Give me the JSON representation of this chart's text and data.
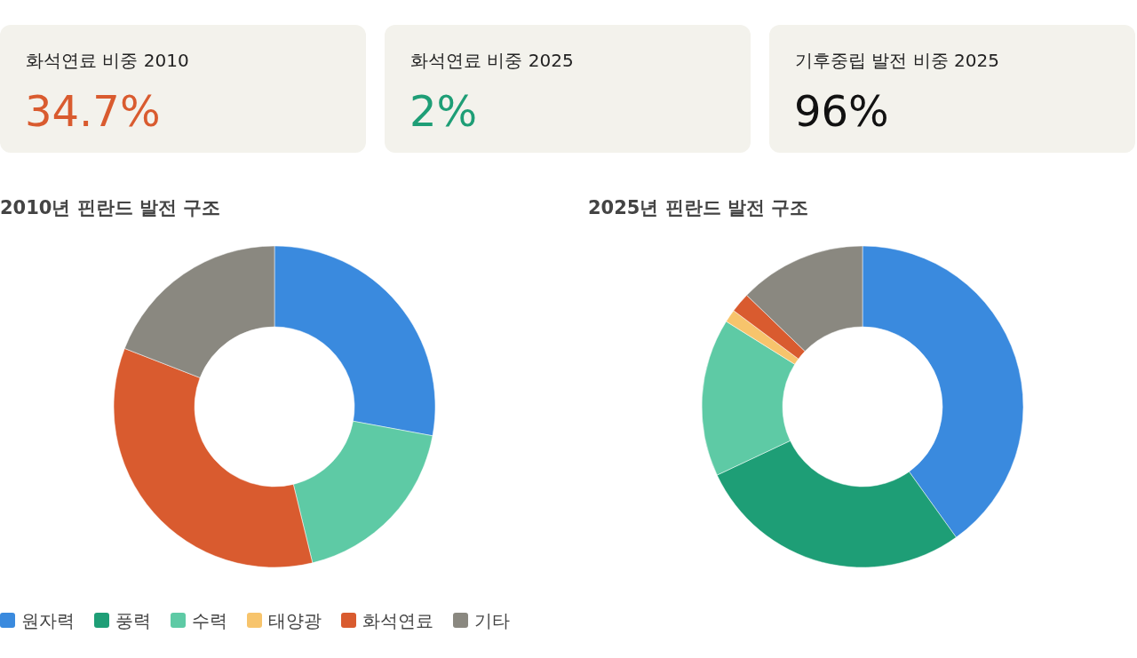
{
  "chart_data": [
    {
      "type": "other",
      "title": "화석연료 비중 2010",
      "annotations": [
        "34.7%"
      ],
      "color": "#d95b2f"
    },
    {
      "type": "other",
      "title": "화석연료 비중 2025",
      "annotations": [
        "2%"
      ],
      "color": "#1e9e76"
    },
    {
      "type": "other",
      "title": "기후중립 발전 비중 2025",
      "annotations": [
        "96%"
      ],
      "color": "#111111"
    },
    {
      "type": "donut",
      "title": "2010년 핀란드 발전 구조",
      "categories": [
        "원자력",
        "풍력",
        "수력",
        "태양광",
        "화석연료",
        "기타"
      ],
      "values": [
        27.9,
        0,
        18.3,
        0,
        34.7,
        19.1
      ],
      "colors": [
        "#3a8ade",
        "#1e9e76",
        "#5ecaa5",
        "#f7c46c",
        "#d95b2f",
        "#8a8880"
      ],
      "legend": "bottom"
    },
    {
      "type": "donut",
      "title": "2025년 핀란드 발전 구조",
      "categories": [
        null,
        null,
        null,
        null,
        null,
        null
      ],
      "values": [
        40.1,
        27.9,
        15.9,
        1.3,
        2,
        12.8
      ],
      "colors": [
        "#3a8ade",
        "#1e9e76",
        "#5ecaa5",
        "#f7c46c",
        "#d95b2f",
        "#8a8880"
      ]
    }
  ]
}
